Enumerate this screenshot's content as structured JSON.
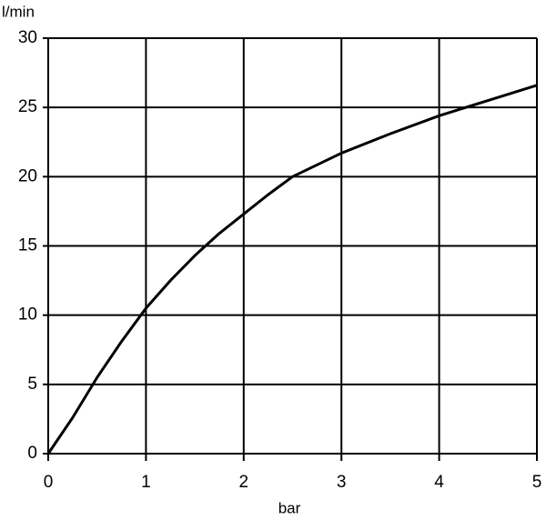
{
  "chart_data": {
    "type": "line",
    "x_label": "bar",
    "y_label": "l/min",
    "series": [
      {
        "color": "#000000",
        "x": [
          0,
          0.25,
          0.5,
          0.75,
          1,
          1.25,
          1.5,
          1.75,
          2,
          2.25,
          2.5,
          3,
          3.5,
          4,
          4.5,
          5
        ],
        "values": [
          0,
          2.6,
          5.5,
          8.1,
          10.5,
          12.5,
          14.3,
          15.9,
          17.3,
          18.7,
          20,
          21.7,
          23.1,
          24.4,
          25.5,
          26.6
        ]
      }
    ],
    "xlim": [
      0,
      5
    ],
    "xticks": [
      0,
      1,
      2,
      3,
      4,
      5
    ],
    "ylim": [
      0,
      30
    ],
    "yticks": [
      0,
      5,
      10,
      15,
      20,
      25,
      30
    ],
    "grid": true
  }
}
